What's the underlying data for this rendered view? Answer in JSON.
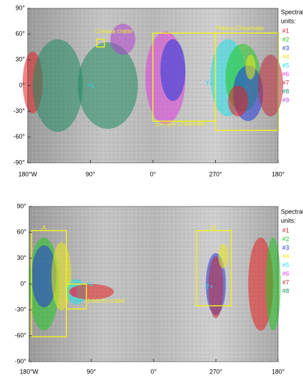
{
  "panels": [
    {
      "yticks": [
        "90°",
        "60°",
        "30°",
        "0°",
        "-30°",
        "-60°",
        "-90°"
      ],
      "xticks": [
        "180°W",
        "90°",
        "0°",
        "270°",
        "180°"
      ],
      "legend_title": [
        "Spectral",
        "units:"
      ],
      "legend": [
        {
          "label": "#1",
          "color": "#e82020"
        },
        {
          "label": "#2",
          "color": "#22c822"
        },
        {
          "label": "#3",
          "color": "#2438d8"
        },
        {
          "label": "#4",
          "color": "#eaea1a"
        },
        {
          "label": "#5",
          "color": "#20e0e8"
        },
        {
          "label": "#6",
          "color": "#e040e0"
        },
        {
          "label": "#7",
          "color": "#c02c3c"
        },
        {
          "label": "#8",
          "color": "#1f8a62"
        },
        {
          "label": "#9",
          "color": "#b044d0"
        }
      ],
      "annotations": [
        "Creusa crater",
        "Pabua Chasmata",
        "Europa Chasmata",
        "+L",
        "T+"
      ]
    },
    {
      "yticks": [
        "90°",
        "60°",
        "30°",
        "0°",
        "-30°",
        "-60°",
        "-90°"
      ],
      "xticks": [
        "180°W",
        "90°",
        "0°",
        "270°",
        "180°"
      ],
      "legend_title": [
        "Spectral",
        "units:"
      ],
      "legend": [
        {
          "label": "#1",
          "color": "#e82020"
        },
        {
          "label": "#2",
          "color": "#22c822"
        },
        {
          "label": "#3",
          "color": "#2438d8"
        },
        {
          "label": "#4",
          "color": "#eaea1a"
        },
        {
          "label": "#5",
          "color": "#20e0e8"
        },
        {
          "label": "#6",
          "color": "#e040e0"
        },
        {
          "label": "#7",
          "color": "#c02c3c"
        },
        {
          "label": "#8",
          "color": "#1f8a62"
        }
      ],
      "annotations": [
        "A",
        "B",
        "Inktomi crater",
        "+L",
        "T+"
      ]
    }
  ]
}
